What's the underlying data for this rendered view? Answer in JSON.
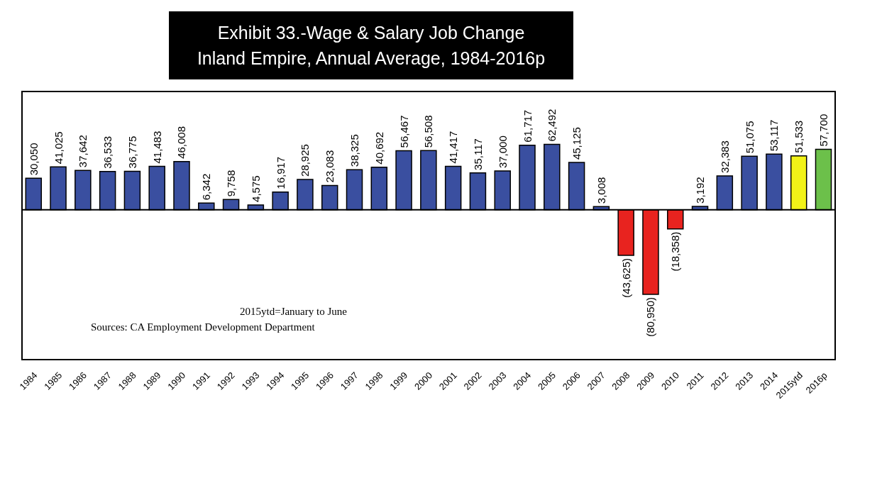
{
  "chart_data": {
    "type": "bar",
    "title": "Exhibit 33.-Wage & Salary Job Change\nInland Empire, Annual Average, 1984-2016p",
    "categories": [
      "1984",
      "1985",
      "1986",
      "1987",
      "1988",
      "1989",
      "1990",
      "1991",
      "1992",
      "1993",
      "1994",
      "1995",
      "1996",
      "1997",
      "1998",
      "1999",
      "2000",
      "2001",
      "2002",
      "2003",
      "2004",
      "2005",
      "2006",
      "2007",
      "2008",
      "2009",
      "2010",
      "2011",
      "2012",
      "2013",
      "2014",
      "2015ytd",
      "2016p"
    ],
    "values": [
      30050,
      41025,
      37642,
      36533,
      36775,
      41483,
      46008,
      6342,
      9758,
      4575,
      16917,
      28925,
      23083,
      38325,
      40692,
      56467,
      56508,
      41417,
      35117,
      37000,
      61717,
      62492,
      45125,
      3008,
      -43625,
      -80950,
      -18358,
      3192,
      32383,
      51075,
      53117,
      51533,
      57700
    ],
    "value_labels": [
      "30,050",
      "41,025",
      "37,642",
      "36,533",
      "36,775",
      "41,483",
      "46,008",
      "6,342",
      "9,758",
      "4,575",
      "16,917",
      "28,925",
      "23,083",
      "38,325",
      "40,692",
      "56,467",
      "56,508",
      "41,417",
      "35,117",
      "37,000",
      "61,717",
      "62,492",
      "45,125",
      "3,008",
      "(43,625)",
      "(80,950)",
      "(18,358)",
      "3,192",
      "32,383",
      "51,075",
      "53,117",
      "51,533",
      "57,700"
    ],
    "colors": [
      "#3a4fa0",
      "#3a4fa0",
      "#3a4fa0",
      "#3a4fa0",
      "#3a4fa0",
      "#3a4fa0",
      "#3a4fa0",
      "#3a4fa0",
      "#3a4fa0",
      "#3a4fa0",
      "#3a4fa0",
      "#3a4fa0",
      "#3a4fa0",
      "#3a4fa0",
      "#3a4fa0",
      "#3a4fa0",
      "#3a4fa0",
      "#3a4fa0",
      "#3a4fa0",
      "#3a4fa0",
      "#3a4fa0",
      "#3a4fa0",
      "#3a4fa0",
      "#3a4fa0",
      "#e8231f",
      "#e8231f",
      "#e8231f",
      "#3a4fa0",
      "#3a4fa0",
      "#3a4fa0",
      "#3a4fa0",
      "#f2f218",
      "#6cc04a"
    ],
    "annotations": [
      "2015ytd=January to June",
      "Sources: CA Employment Development Department"
    ]
  }
}
